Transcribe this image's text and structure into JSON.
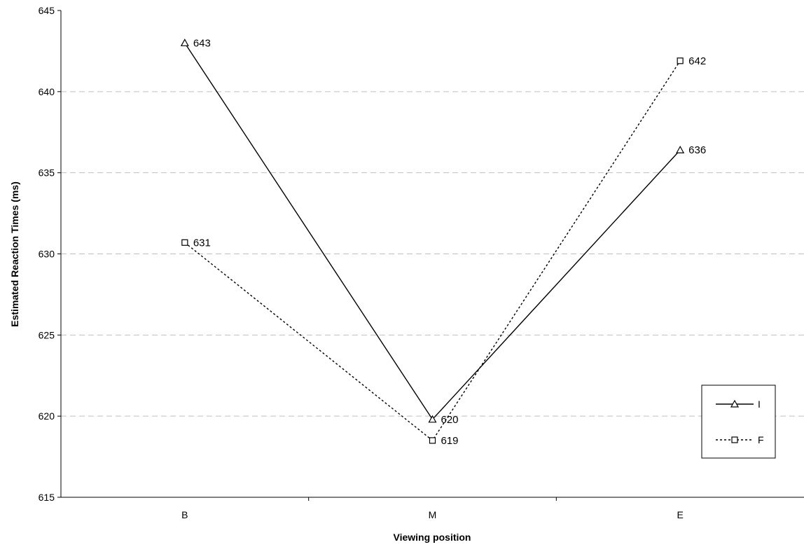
{
  "chart_data": {
    "type": "line",
    "categories": [
      "B",
      "M",
      "E"
    ],
    "series": [
      {
        "name": "I",
        "values": [
          643,
          619.8,
          636.4
        ],
        "labels": [
          "643",
          "620",
          "636"
        ],
        "marker": "triangle",
        "dash": "solid",
        "color": "#000000"
      },
      {
        "name": "F",
        "values": [
          630.7,
          618.5,
          641.9
        ],
        "labels": [
          "631",
          "619",
          "642"
        ],
        "marker": "square",
        "dash": "dotted",
        "color": "#000000"
      }
    ],
    "xlabel": "Viewing position",
    "ylabel": "Estimated Reaction Times (ms)",
    "ylim": [
      615,
      645
    ],
    "yticks": [
      "615",
      "620",
      "625",
      "630",
      "635",
      "640",
      "645"
    ],
    "grid": true,
    "grid_color": "#c0c0c0",
    "legend_position": "right"
  }
}
